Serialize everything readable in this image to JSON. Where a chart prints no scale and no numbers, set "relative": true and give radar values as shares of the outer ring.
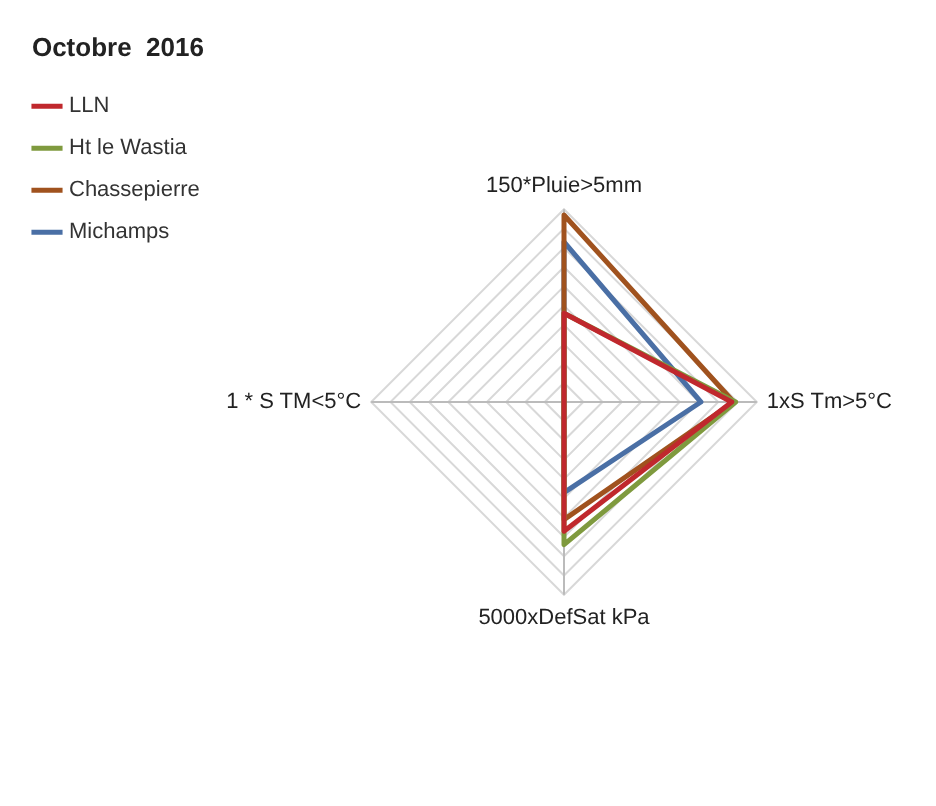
{
  "chart_data": {
    "type": "radar",
    "title": "Octobre  2016",
    "relative": true,
    "legend": "top left",
    "marker": "none",
    "categories": [
      "150*Pluie>5mm",
      "1xS Tm>5°C",
      "5000xDefSat kPa",
      "1 * S TM<5°C"
    ],
    "series": [
      {
        "name": "LLN",
        "color": "#c0282d",
        "values": [
          0.46,
          0.87,
          0.67,
          0
        ]
      },
      {
        "name": "Ht le Wastia",
        "color": "#7f9a3e",
        "values": [
          0.46,
          0.89,
          0.74,
          0
        ]
      },
      {
        "name": "Chassepierre",
        "color": "#a0521e",
        "values": [
          0.97,
          0.88,
          0.61,
          0
        ]
      },
      {
        "name": "Michamps",
        "color": "#4a6fa5",
        "values": [
          0.83,
          0.71,
          0.47,
          0
        ]
      }
    ]
  }
}
